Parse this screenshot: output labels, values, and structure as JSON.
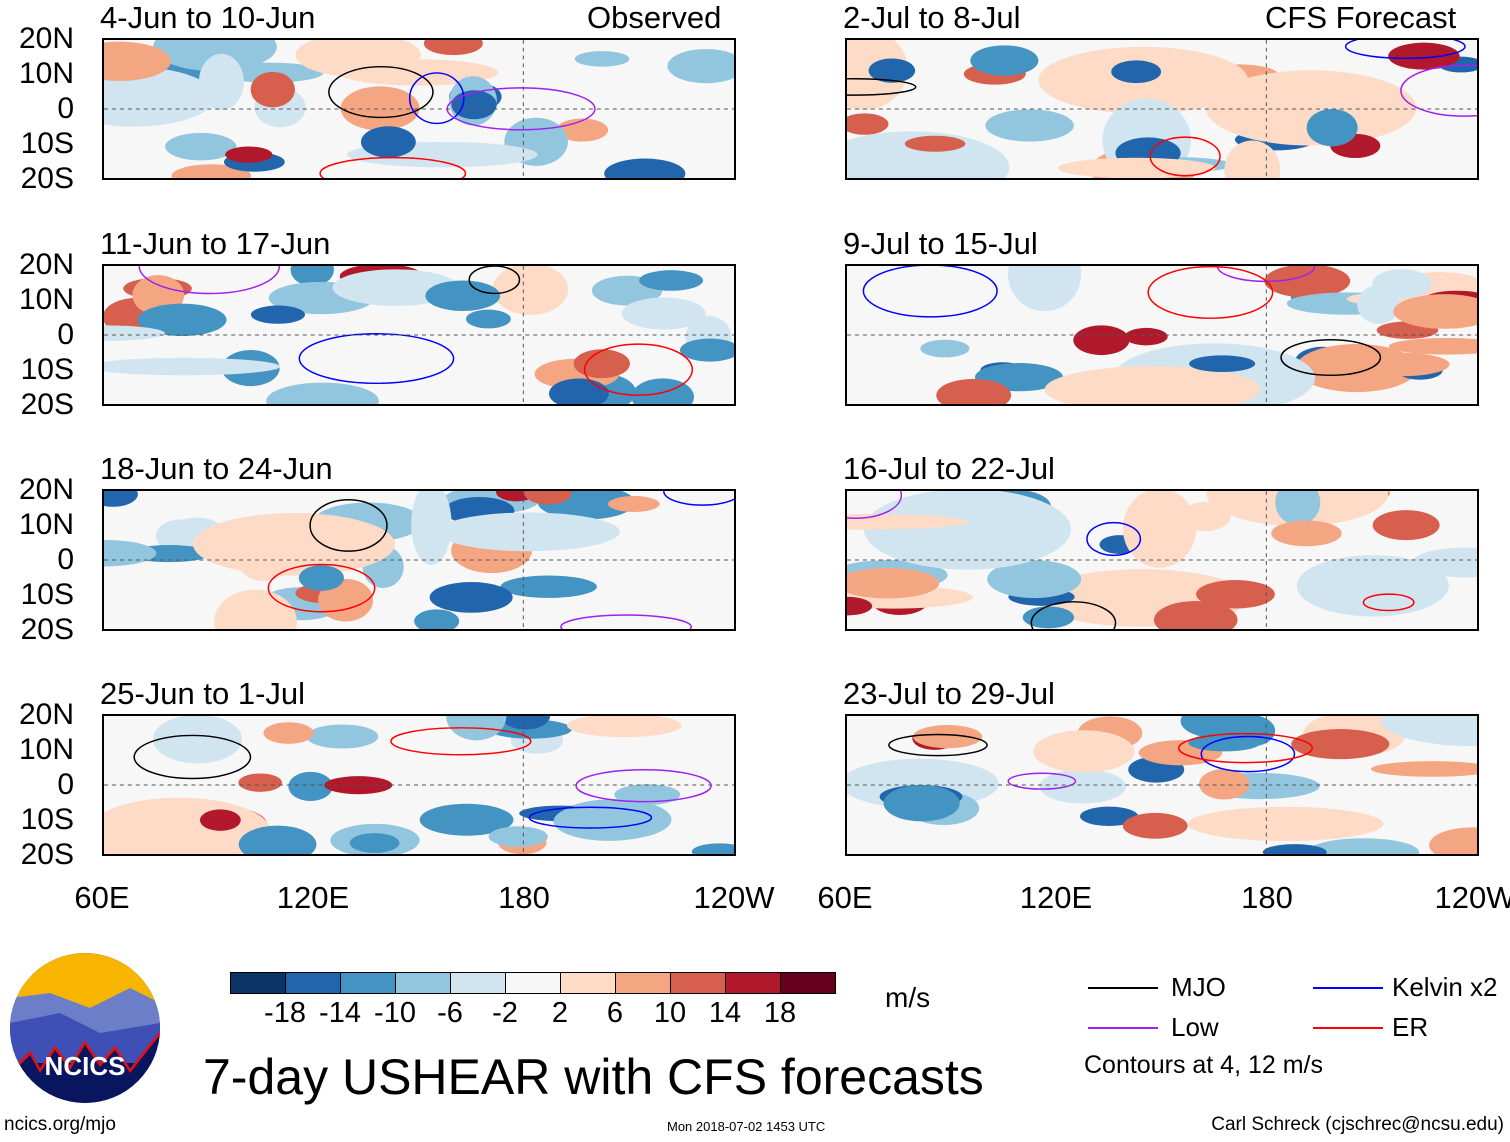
{
  "figure_title": "7-day USHEAR with CFS forecasts",
  "left_column_label": "Observed",
  "right_column_label": "CFS Forecast",
  "left_panels": [
    "4-Jun to 10-Jun",
    "11-Jun to 17-Jun",
    "18-Jun to 24-Jun",
    "25-Jun to 1-Jul"
  ],
  "right_panels": [
    "2-Jul to 8-Jul",
    "9-Jul to 15-Jul",
    "16-Jul to 22-Jul",
    "23-Jul to 29-Jul"
  ],
  "lat_labels": [
    "20N",
    "10N",
    "0",
    "10S",
    "20S"
  ],
  "lon_labels": [
    "60E",
    "120E",
    "180",
    "120W"
  ],
  "colorbar": {
    "unit": "m/s",
    "labels": [
      "-18",
      "-14",
      "-10",
      "-6",
      "-2",
      "2",
      "6",
      "10",
      "14",
      "18"
    ],
    "colors": [
      "#0a3366",
      "#2166ac",
      "#4393c3",
      "#92c5de",
      "#d1e5f0",
      "#f7f7f7",
      "#fddbc7",
      "#f4a582",
      "#d6604d",
      "#b2182b",
      "#67001f"
    ]
  },
  "legend": {
    "items": [
      {
        "label": "MJO",
        "color": "#000000"
      },
      {
        "label": "Kelvin x2",
        "color": "#0000ff"
      },
      {
        "label": "Low",
        "color": "#a020f0"
      },
      {
        "label": "ER",
        "color": "#ff0000"
      }
    ],
    "note": "Contours at 4, 12 m/s"
  },
  "logo_text": "NCICS",
  "footer": {
    "url": "ncics.org/mjo",
    "timestamp": "Mon 2018-07-02 1453 UTC",
    "credit": "Carl Schreck (cjschrec@ncsu.edu)"
  }
}
